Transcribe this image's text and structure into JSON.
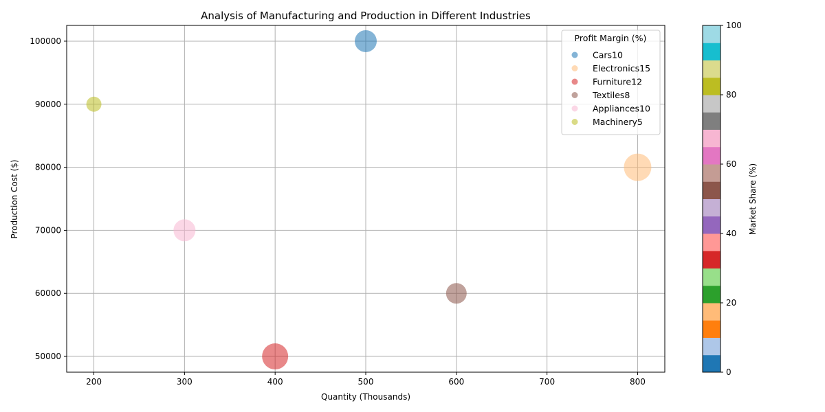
{
  "chart_data": {
    "type": "scatter",
    "title": "Analysis of Manufacturing and Production in Different Industries",
    "xlabel": "Quantity (Thousands)",
    "ylabel": "Production Cost ($)",
    "xlim": [
      170,
      830
    ],
    "ylim": [
      47500,
      102500
    ],
    "x_ticks": [
      200,
      300,
      400,
      500,
      600,
      700,
      800
    ],
    "y_ticks": [
      50000,
      60000,
      70000,
      80000,
      90000,
      100000
    ],
    "grid": true,
    "legend": {
      "title": "Profit Margin (%)",
      "placement": "top-right"
    },
    "series": [
      {
        "name": "Cars10",
        "x": 500,
        "y": 100000,
        "market_share": 5,
        "bubble_size": 500,
        "color": "#1f77b4"
      },
      {
        "name": "Electronics15",
        "x": 800,
        "y": 80000,
        "market_share": 20,
        "bubble_size": 500,
        "color": "#ffbb78"
      },
      {
        "name": "Furniture12",
        "x": 400,
        "y": 50000,
        "market_share": 35,
        "bubble_size": 500,
        "color": "#d62728"
      },
      {
        "name": "Textiles8",
        "x": 600,
        "y": 60000,
        "market_share": 55,
        "bubble_size": 500,
        "color": "#8c564b"
      },
      {
        "name": "Appliances10",
        "x": 300,
        "y": 70000,
        "market_share": 65,
        "bubble_size": 500,
        "color": "#f7b6d2"
      },
      {
        "name": "Machinery5",
        "x": 200,
        "y": 90000,
        "market_share": 85,
        "bubble_size": 500,
        "color": "#bcbd22"
      }
    ],
    "bubble_radii": {
      "Cars10": 16,
      "Electronics15": 20,
      "Furniture12": 19,
      "Textiles8": 15,
      "Appliances10": 16,
      "Machinery5": 11
    },
    "colorbar": {
      "label": "Market Share (%)",
      "range": [
        0,
        100
      ],
      "ticks": [
        0,
        20,
        40,
        60,
        80,
        100
      ],
      "colors": [
        "#1f77b4",
        "#aec7e8",
        "#ff7f0e",
        "#ffbb78",
        "#2ca02c",
        "#98df8a",
        "#d62728",
        "#ff9896",
        "#9467bd",
        "#c5b0d5",
        "#8c564b",
        "#c49c94",
        "#e377c2",
        "#f7b6d2",
        "#7f7f7f",
        "#c7c7c7",
        "#bcbd22",
        "#dbdb8d",
        "#17becf",
        "#9edae5"
      ]
    }
  }
}
